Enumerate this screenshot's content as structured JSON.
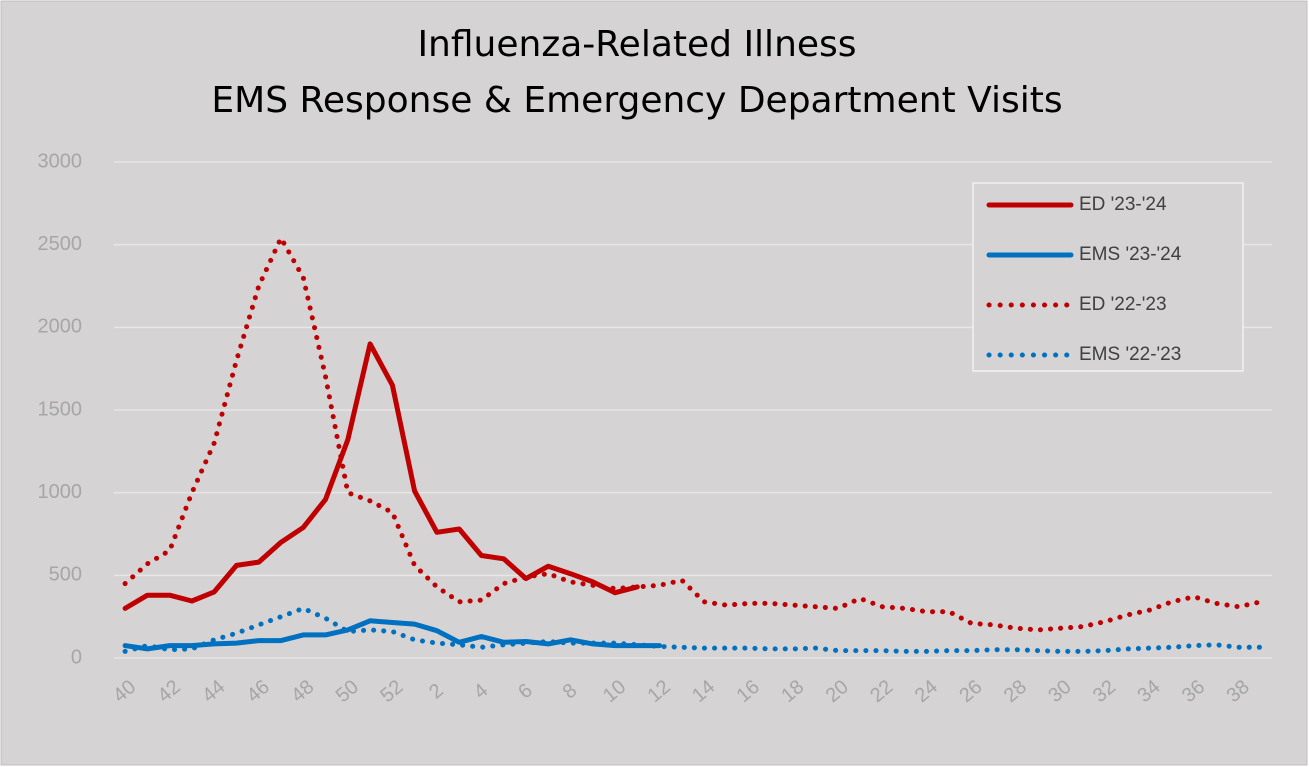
{
  "chart_data": {
    "type": "line",
    "title": [
      "Influenza-Related Illness",
      "EMS Response & Emergency Department Visits"
    ],
    "categories": [
      "40",
      null,
      "42",
      null,
      "44",
      null,
      "46",
      null,
      "48",
      null,
      "50",
      null,
      "52",
      null,
      "2",
      null,
      "4",
      null,
      "6",
      null,
      "8",
      null,
      "10",
      null,
      "12",
      null,
      "14",
      null,
      "16",
      null,
      "18",
      null,
      "20",
      null,
      "22",
      null,
      "24",
      null,
      "26",
      null,
      "28",
      null,
      "30",
      null,
      "32",
      null,
      "34",
      null,
      "36",
      null,
      "38",
      null
    ],
    "series": [
      {
        "name": "ED '23-'24",
        "color": "#c00000",
        "dash": "solid",
        "values": [
          300,
          380,
          380,
          345,
          400,
          560,
          580,
          700,
          790,
          960,
          1320,
          1900,
          1650,
          1010,
          760,
          780,
          620,
          600,
          480,
          555,
          510,
          460,
          395,
          430,
          null,
          null,
          null,
          null,
          null,
          null,
          null,
          null,
          null,
          null,
          null,
          null,
          null,
          null,
          null,
          null,
          null,
          null,
          null,
          null,
          null,
          null,
          null,
          null,
          null,
          null,
          null,
          null
        ]
      },
      {
        "name": "EMS '23-'24",
        "color": "#0070c0",
        "dash": "solid",
        "values": [
          75,
          55,
          75,
          75,
          85,
          90,
          105,
          105,
          140,
          140,
          170,
          225,
          215,
          205,
          165,
          95,
          130,
          95,
          100,
          85,
          110,
          85,
          75,
          75,
          75,
          null,
          null,
          null,
          null,
          null,
          null,
          null,
          null,
          null,
          null,
          null,
          null,
          null,
          null,
          null,
          null,
          null,
          null,
          null,
          null,
          null,
          null,
          null,
          null,
          null,
          null,
          null
        ]
      },
      {
        "name": "ED '22-'23",
        "color": "#c00000",
        "dash": "dotted",
        "values": [
          450,
          570,
          650,
          1000,
          1300,
          1800,
          2250,
          2540,
          2300,
          1700,
          1000,
          950,
          880,
          560,
          430,
          340,
          350,
          450,
          490,
          510,
          460,
          440,
          420,
          430,
          440,
          470,
          340,
          320,
          330,
          330,
          320,
          310,
          300,
          360,
          310,
          300,
          280,
          280,
          210,
          200,
          180,
          170,
          180,
          190,
          220,
          260,
          290,
          340,
          370,
          330,
          310,
          340
        ]
      },
      {
        "name": "EMS '22-'23",
        "color": "#0070c0",
        "dash": "dotted",
        "values": [
          40,
          75,
          50,
          55,
          110,
          150,
          200,
          250,
          300,
          240,
          160,
          170,
          160,
          110,
          90,
          80,
          65,
          80,
          90,
          100,
          90,
          90,
          90,
          80,
          70,
          65,
          60,
          60,
          60,
          55,
          55,
          60,
          45,
          45,
          45,
          40,
          40,
          45,
          45,
          50,
          50,
          45,
          40,
          40,
          45,
          55,
          60,
          65,
          75,
          80,
          65,
          65
        ]
      }
    ],
    "ylim": [
      0,
      3000
    ],
    "yticks": [
      0,
      500,
      1000,
      1500,
      2000,
      2500,
      3000
    ],
    "grid": true,
    "legend": "top-right"
  }
}
